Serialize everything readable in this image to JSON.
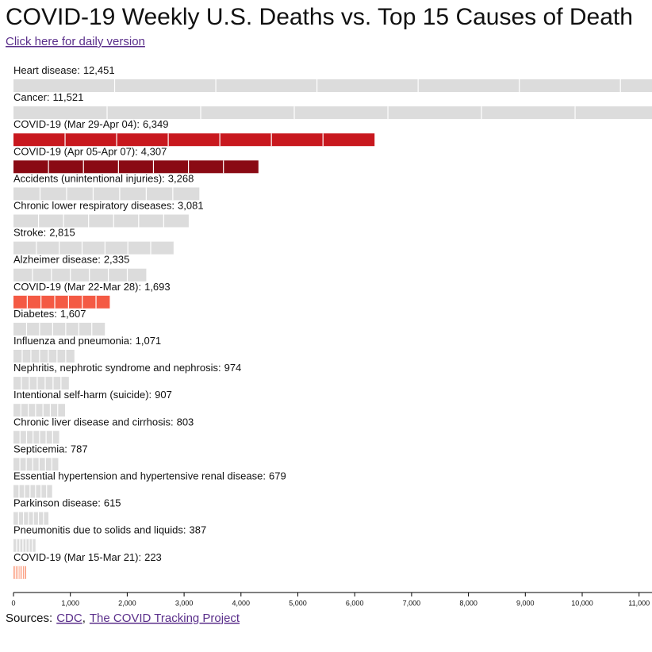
{
  "chart_data": {
    "type": "bar",
    "orientation": "horizontal",
    "title": "COVID-19 Weekly U.S. Deaths vs. Top 15 Causes of Death",
    "link": "Click here for daily version",
    "source_label": "Sources:",
    "sources": [
      "CDC",
      "The COVID Tracking Project"
    ],
    "categories": [
      "Heart disease:",
      "Cancer:",
      "COVID-19 (Mar 29-Apr 04):",
      "COVID-19 (Apr 05-Apr 07):",
      "Accidents (unintentional injuries):",
      "Chronic lower respiratory diseases:",
      "Stroke:",
      "Alzheimer disease:",
      "COVID-19 (Mar 22-Mar 28):",
      "Diabetes:",
      "Influenza and pneumonia:",
      "Nephritis, nephrotic syndrome and nephrosis:",
      "Intentional self-harm (suicide):",
      "Chronic liver disease and cirrhosis:",
      "Septicemia:",
      "Essential hypertension and hypertensive renal disease:",
      "Parkinson disease:",
      "Pneumonitis due to solids and liquids:",
      "COVID-19 (Mar 15-Mar 21):"
    ],
    "values": [
      12451,
      11521,
      6349,
      4307,
      3268,
      3081,
      2815,
      2335,
      1693,
      1607,
      1071,
      974,
      907,
      803,
      787,
      679,
      615,
      387,
      223
    ],
    "value_labels": [
      "12,451",
      "11,521",
      "6,349",
      "4,307",
      "3,268",
      "3,081",
      "2,815",
      "2,335",
      "1,693",
      "1,607",
      "1,071",
      "974",
      "907",
      "803",
      "787",
      "679",
      "615",
      "387",
      "223"
    ],
    "colors": [
      "#dcdcdc",
      "#dcdcdc",
      "#c8181e",
      "#8a0a14",
      "#dcdcdc",
      "#dcdcdc",
      "#dcdcdc",
      "#dcdcdc",
      "#f45a44",
      "#dcdcdc",
      "#dcdcdc",
      "#dcdcdc",
      "#dcdcdc",
      "#dcdcdc",
      "#dcdcdc",
      "#dcdcdc",
      "#dcdcdc",
      "#dcdcdc",
      "#fba286"
    ],
    "xlim": [
      0,
      11250
    ],
    "xticks": [
      0,
      {
        "value": 1000,
        "label": "1,000"
      },
      {
        "value": 2000,
        "label": "2,000"
      },
      {
        "value": 3000,
        "label": "3,000"
      },
      {
        "value": 4000,
        "label": "4,000"
      },
      {
        "value": 5000,
        "label": "5,000"
      },
      {
        "value": 6000,
        "label": "6,000"
      },
      {
        "value": 7000,
        "label": "7,000"
      },
      {
        "value": 8000,
        "label": "8,000"
      },
      {
        "value": 9000,
        "label": "9,000"
      },
      {
        "value": 10000,
        "label": "10,000"
      },
      {
        "value": 11000,
        "label": "11,000"
      }
    ]
  }
}
